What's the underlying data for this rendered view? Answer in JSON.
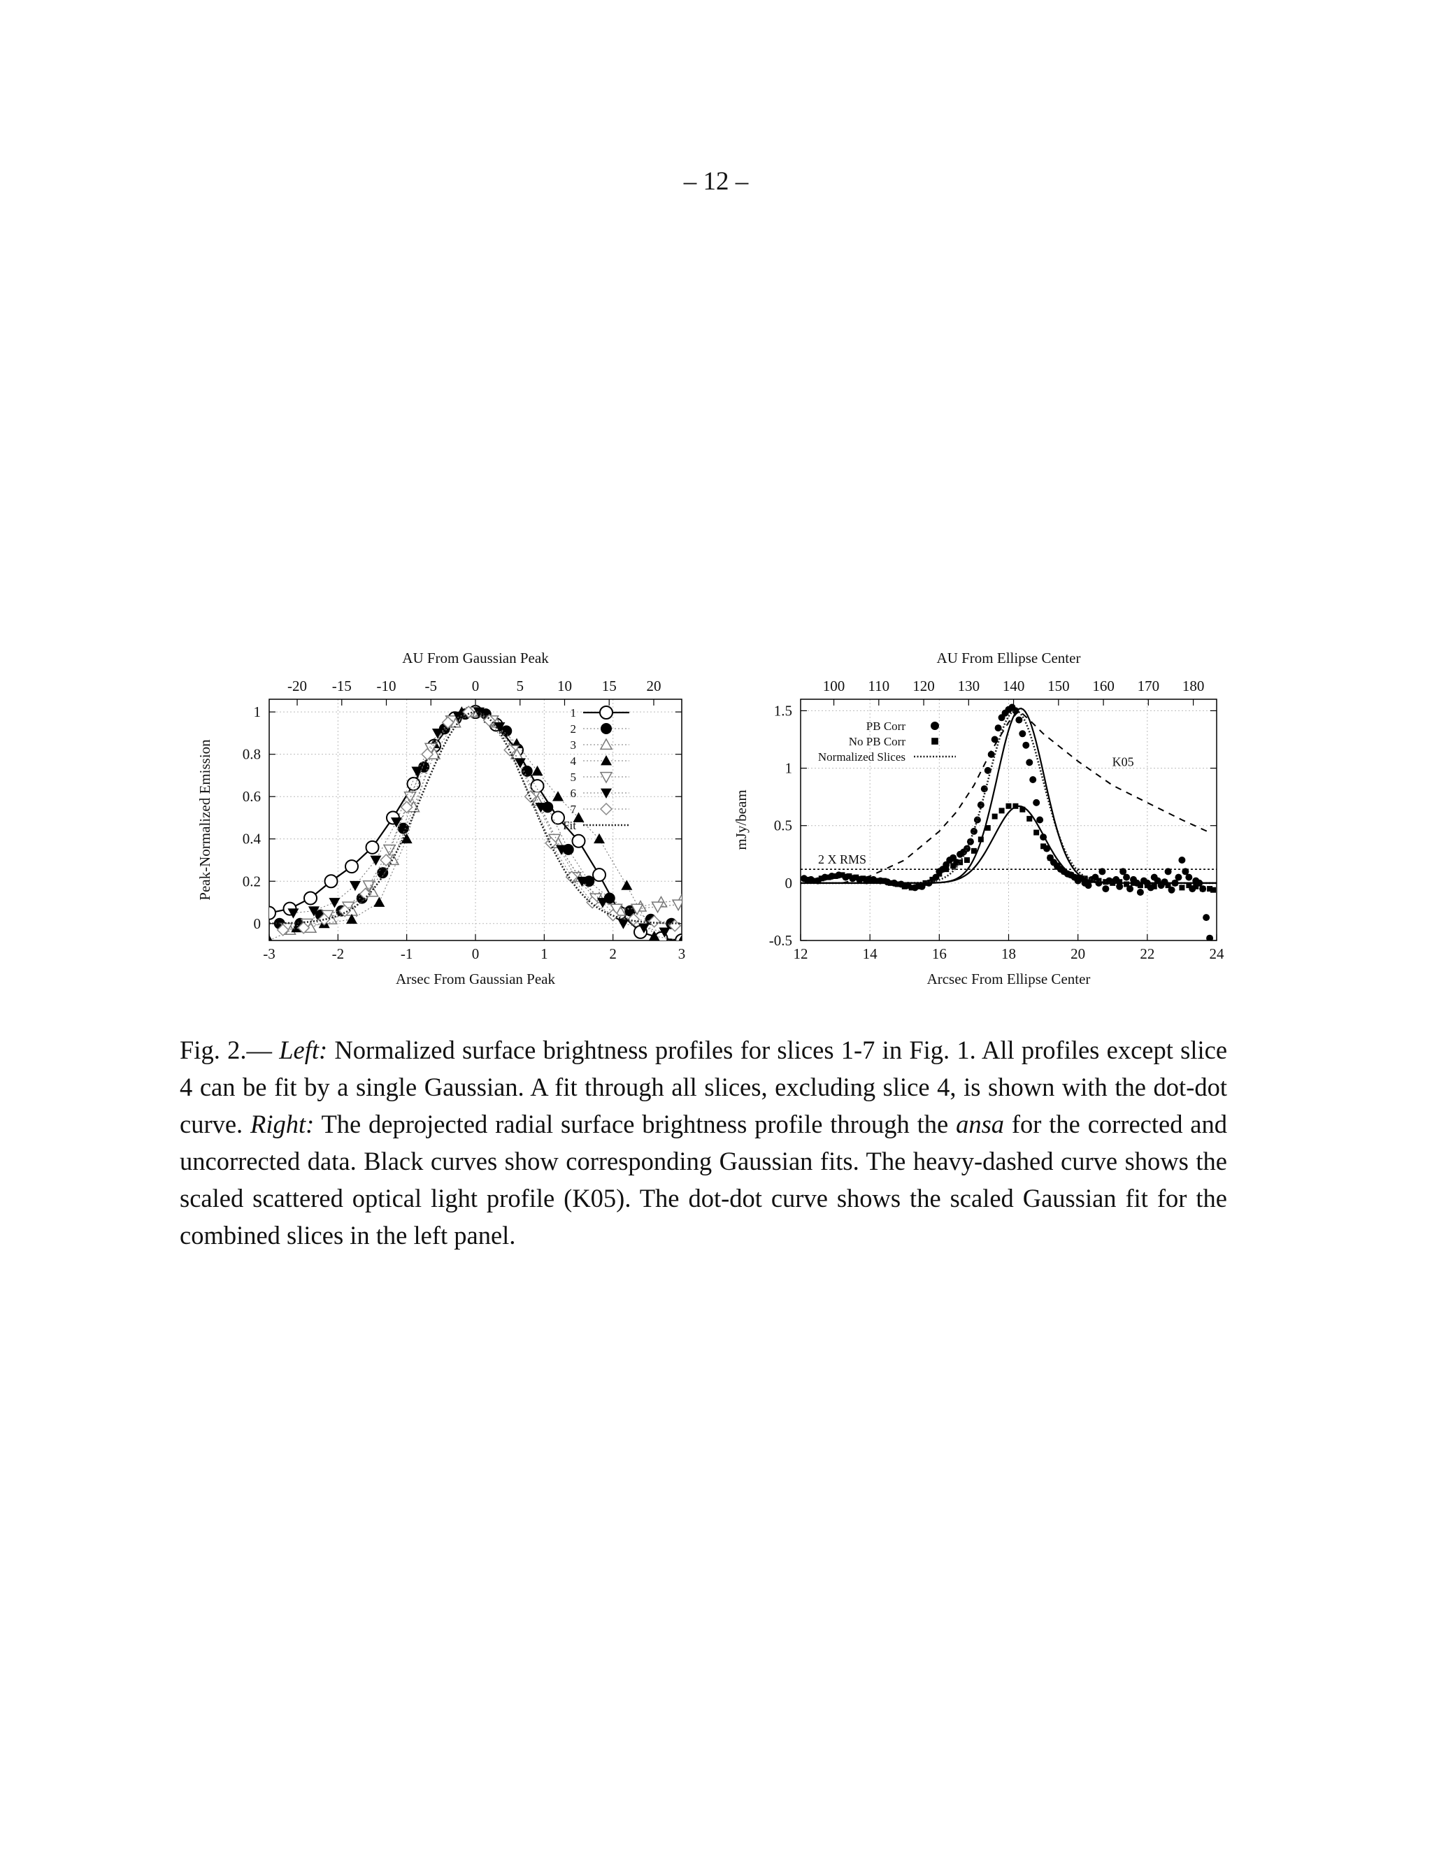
{
  "page": {
    "number": "– 12 –"
  },
  "caption": {
    "fig_label": "Fig. 2.—",
    "left_label": "Left:",
    "text_1": "Normalized surface brightness profiles for slices 1-7 in Fig. 1. All profiles except slice 4 can be fit by a single Gaussian. A fit through all slices, excluding slice 4, is shown with the dot-dot curve.",
    "right_label": "Right:",
    "text_2": "The deprojected radial surface brightness profile through the",
    "ansa": "ansa",
    "text_3": "for the corrected and uncorrected data. Black curves show corresponding Gaussian fits. The heavy-dashed curve shows the scaled scattered optical light profile (K05). The dot-dot curve shows the scaled Gaussian fit for the combined slices in the left panel."
  },
  "chart_data": [
    {
      "type": "scatter",
      "xlabel": "Arsec From Gaussian Peak",
      "ylabel": "Peak-Normalized Emission",
      "x2label": "AU From Gaussian Peak",
      "xlim": [
        -3,
        3
      ],
      "ylim": [
        -0.08,
        1.06
      ],
      "x2lim": [
        -23.14,
        23.14
      ],
      "xticks": [
        "-3",
        "-2",
        "-1",
        "0",
        "1",
        "2",
        "3"
      ],
      "yticks": [
        "0",
        "0.2",
        "0.4",
        "0.6",
        "0.8",
        "1"
      ],
      "x2ticks": [
        "-20",
        "-15",
        "-10",
        "-5",
        "0",
        "5",
        "10",
        "15",
        "20"
      ],
      "grid": true,
      "legend_position": "top-right",
      "series": [
        {
          "name": "1",
          "marker": "open-circle",
          "line": "solid",
          "x": [
            -3,
            -2.7,
            -2.4,
            -2.1,
            -1.8,
            -1.5,
            -1.2,
            -0.9,
            -0.6,
            -0.3,
            0,
            0.3,
            0.6,
            0.9,
            1.2,
            1.5,
            1.8,
            2.1,
            2.4,
            2.7,
            3
          ],
          "y": [
            0.05,
            0.07,
            0.12,
            0.2,
            0.27,
            0.36,
            0.5,
            0.66,
            0.84,
            0.97,
            1.0,
            0.94,
            0.82,
            0.65,
            0.5,
            0.39,
            0.23,
            0.05,
            -0.04,
            -0.07,
            -0.08
          ]
        },
        {
          "name": "2",
          "marker": "filled-circle",
          "line": "dotted",
          "x": [
            -2.85,
            -2.55,
            -2.25,
            -1.95,
            -1.65,
            -1.35,
            -1.05,
            -0.75,
            -0.45,
            -0.15,
            0.15,
            0.45,
            0.75,
            1.05,
            1.35,
            1.65,
            1.95,
            2.25,
            2.55,
            2.85
          ],
          "y": [
            0.0,
            0.0,
            0.04,
            0.06,
            0.12,
            0.24,
            0.45,
            0.74,
            0.92,
            0.99,
            0.99,
            0.91,
            0.72,
            0.55,
            0.35,
            0.2,
            0.12,
            0.06,
            0.02,
            0.0
          ]
        },
        {
          "name": "3",
          "marker": "open-triangle-up",
          "line": "dotted",
          "x": [
            -2.7,
            -2.4,
            -2.1,
            -1.8,
            -1.5,
            -1.2,
            -0.9,
            -0.6,
            -0.3,
            0,
            0.3,
            0.6,
            0.9,
            1.2,
            1.5,
            1.8,
            2.1,
            2.4,
            2.7,
            3
          ],
          "y": [
            -0.03,
            -0.02,
            0.02,
            0.06,
            0.15,
            0.3,
            0.55,
            0.8,
            0.95,
            1.0,
            0.95,
            0.8,
            0.58,
            0.38,
            0.22,
            0.12,
            0.06,
            0.08,
            0.1,
            0.11
          ]
        },
        {
          "name": "4",
          "marker": "filled-triangle-up",
          "line": "dotted",
          "x": [
            -3,
            -2.6,
            -2.2,
            -1.8,
            -1.4,
            -1.0,
            -0.6,
            -0.2,
            0.2,
            0.6,
            0.9,
            1.2,
            1.5,
            1.8,
            2.2,
            2.6,
            3
          ],
          "y": [
            -0.08,
            -0.02,
            0.0,
            0.02,
            0.1,
            0.4,
            0.85,
            1.0,
            0.97,
            0.85,
            0.72,
            0.6,
            0.5,
            0.4,
            0.18,
            -0.06,
            -0.08
          ]
        },
        {
          "name": "5",
          "marker": "open-triangle-down",
          "line": "dotted",
          "x": [
            -2.75,
            -2.45,
            -2.15,
            -1.85,
            -1.55,
            -1.25,
            -0.95,
            -0.65,
            -0.35,
            -0.05,
            0.25,
            0.55,
            0.85,
            1.15,
            1.45,
            1.75,
            2.05,
            2.35,
            2.65,
            2.95
          ],
          "y": [
            -0.02,
            0.0,
            0.04,
            0.08,
            0.18,
            0.35,
            0.6,
            0.83,
            0.96,
            1.0,
            0.96,
            0.82,
            0.6,
            0.4,
            0.22,
            0.12,
            0.07,
            0.07,
            0.08,
            0.09
          ]
        },
        {
          "name": "6",
          "marker": "filled-triangle-down",
          "line": "dotted",
          "x": [
            -2.65,
            -2.35,
            -2.05,
            -1.75,
            -1.45,
            -1.15,
            -0.85,
            -0.55,
            -0.25,
            0.05,
            0.35,
            0.65,
            0.95,
            1.25,
            1.55,
            1.85,
            2.15,
            2.45,
            2.75
          ],
          "y": [
            0.05,
            0.06,
            0.1,
            0.18,
            0.3,
            0.48,
            0.72,
            0.9,
            0.98,
            1.0,
            0.93,
            0.76,
            0.55,
            0.35,
            0.2,
            0.1,
            0.0,
            -0.02,
            -0.04
          ]
        },
        {
          "name": "7",
          "marker": "open-diamond",
          "line": "dotted",
          "x": [
            -2.8,
            -2.5,
            -2.2,
            -1.9,
            -1.6,
            -1.3,
            -1.0,
            -0.7,
            -0.4,
            -0.1,
            0.2,
            0.5,
            0.8,
            1.1,
            1.4,
            1.7,
            2.0,
            2.3,
            2.6,
            2.9
          ],
          "y": [
            -0.03,
            -0.02,
            0.02,
            0.06,
            0.14,
            0.3,
            0.55,
            0.8,
            0.95,
            1.0,
            0.96,
            0.82,
            0.6,
            0.38,
            0.22,
            0.1,
            0.04,
            0.02,
            0.01,
            -0.01
          ]
        },
        {
          "name": "Fit",
          "marker": "none",
          "line": "dotted-heavy",
          "gaussian": {
            "amplitude": 1.0,
            "center": 0.0,
            "sigma": 0.78
          }
        }
      ]
    },
    {
      "type": "scatter",
      "xlabel": "Arcsec From Ellipse Center",
      "ylabel": "mJy/beam",
      "x2label": "AU From Ellipse Center",
      "xlim": [
        12,
        24
      ],
      "ylim": [
        -0.5,
        1.6
      ],
      "x2lim": [
        92.6,
        185.2
      ],
      "xticks": [
        "12",
        "14",
        "16",
        "18",
        "20",
        "22",
        "24"
      ],
      "yticks": [
        "-0.5",
        "0",
        "0.5",
        "1",
        "1.5"
      ],
      "x2ticks": [
        "100",
        "110",
        "120",
        "130",
        "140",
        "150",
        "160",
        "170",
        "180"
      ],
      "grid": true,
      "legend_position": "top-left",
      "annotations": [
        "2 X RMS",
        "K05"
      ],
      "rms_level": 0.12,
      "series": [
        {
          "name": "PB Corr",
          "marker": "filled-circle",
          "x": [
            12.1,
            12.3,
            12.5,
            12.7,
            12.9,
            13.1,
            13.3,
            13.5,
            13.7,
            13.9,
            14.1,
            14.3,
            14.5,
            14.7,
            14.9,
            15.1,
            15.3,
            15.5,
            15.7,
            15.9,
            16.0,
            16.1,
            16.2,
            16.3,
            16.4,
            16.5,
            16.6,
            16.7,
            16.8,
            16.9,
            17.0,
            17.1,
            17.2,
            17.3,
            17.4,
            17.5,
            17.6,
            17.7,
            17.8,
            17.9,
            18.0,
            18.1,
            18.2,
            18.3,
            18.4,
            18.5,
            18.6,
            18.7,
            18.8,
            18.9,
            19.0,
            19.1,
            19.2,
            19.3,
            19.4,
            19.5,
            19.6,
            19.7,
            19.8,
            19.9,
            20.0,
            20.1,
            20.2,
            20.3,
            20.4,
            20.5,
            20.6,
            20.7,
            20.8,
            20.9,
            21.0,
            21.1,
            21.2,
            21.3,
            21.4,
            21.5,
            21.6,
            21.7,
            21.8,
            21.9,
            22.0,
            22.1,
            22.2,
            22.3,
            22.4,
            22.5,
            22.6,
            22.7,
            22.8,
            22.9,
            23.0,
            23.1,
            23.2,
            23.3,
            23.4,
            23.5,
            23.6,
            23.7,
            23.8
          ],
          "y": [
            0.04,
            0.03,
            0.02,
            0.05,
            0.06,
            0.07,
            0.05,
            0.04,
            0.03,
            0.02,
            0.03,
            0.02,
            0.01,
            0.0,
            -0.01,
            -0.02,
            -0.04,
            -0.03,
            0.0,
            0.05,
            0.1,
            0.12,
            0.16,
            0.2,
            0.22,
            0.18,
            0.25,
            0.27,
            0.3,
            0.36,
            0.45,
            0.55,
            0.68,
            0.82,
            0.98,
            1.12,
            1.25,
            1.35,
            1.44,
            1.48,
            1.51,
            1.53,
            1.5,
            1.42,
            1.3,
            1.2,
            1.05,
            0.9,
            0.7,
            0.55,
            0.4,
            0.3,
            0.22,
            0.18,
            0.15,
            0.12,
            0.1,
            0.08,
            0.07,
            0.05,
            0.02,
            0.04,
            0.0,
            -0.02,
            0.03,
            0.05,
            0.0,
            0.1,
            -0.05,
            0.02,
            0.01,
            0.03,
            -0.03,
            0.1,
            0.05,
            -0.05,
            0.03,
            0.0,
            -0.08,
            0.02,
            0.0,
            -0.04,
            0.05,
            0.02,
            -0.02,
            0.01,
            0.1,
            -0.06,
            0.0,
            0.05,
            0.2,
            0.1,
            0.05,
            -0.05,
            0.02,
            0.0,
            -0.05,
            -0.3,
            -0.48
          ]
        },
        {
          "name": "No PB Corr",
          "marker": "filled-square",
          "x": [
            12.2,
            12.4,
            12.6,
            12.8,
            13.0,
            13.2,
            13.4,
            13.6,
            13.8,
            14.0,
            14.2,
            14.4,
            14.6,
            14.8,
            15.0,
            15.2,
            15.4,
            15.6,
            15.8,
            16.0,
            16.2,
            16.4,
            16.6,
            16.8,
            17.0,
            17.2,
            17.4,
            17.6,
            17.8,
            18.0,
            18.2,
            18.4,
            18.6,
            18.8,
            19.0,
            19.2,
            19.4,
            19.6,
            19.8,
            20.0,
            20.2,
            20.4,
            20.6,
            20.8,
            21.0,
            21.2,
            21.4,
            21.6,
            21.8,
            22.0,
            22.2,
            22.4,
            22.6,
            22.8,
            23.0,
            23.2,
            23.4,
            23.6,
            23.8,
            23.9
          ],
          "y": [
            0.03,
            0.02,
            0.04,
            0.05,
            0.06,
            0.07,
            0.06,
            0.05,
            0.04,
            0.03,
            0.02,
            0.02,
            0.0,
            -0.01,
            -0.03,
            -0.04,
            -0.03,
            0.0,
            0.03,
            0.08,
            0.12,
            0.15,
            0.18,
            0.2,
            0.28,
            0.38,
            0.48,
            0.58,
            0.63,
            0.67,
            0.67,
            0.64,
            0.56,
            0.44,
            0.32,
            0.22,
            0.14,
            0.1,
            0.07,
            0.05,
            0.04,
            0.03,
            0.02,
            0.01,
            0.0,
            0.01,
            -0.01,
            0.0,
            -0.02,
            -0.02,
            -0.03,
            -0.01,
            -0.02,
            0.0,
            -0.04,
            -0.02,
            -0.03,
            -0.05,
            -0.05,
            -0.06
          ]
        },
        {
          "name": "Normalized Slices",
          "marker": "none",
          "line": "dotted-heavy",
          "gaussian": {
            "amplitude": 1.5,
            "center": 18.2,
            "sigma": 0.78
          }
        },
        {
          "name": "",
          "marker": "none",
          "line": "solid",
          "gaussian": {
            "amplitude": 1.52,
            "center": 18.35,
            "sigma": 0.68
          }
        },
        {
          "name": "",
          "marker": "none",
          "line": "solid",
          "gaussian": {
            "amplitude": 0.67,
            "center": 18.3,
            "sigma": 0.72
          }
        },
        {
          "name": "",
          "marker": "none",
          "line": "dashed-heavy",
          "x": [
            13.2,
            14.0,
            15.0,
            16.0,
            16.5,
            17.0,
            17.5,
            18.0,
            18.3,
            18.6,
            19.0,
            19.5,
            20.0,
            21.0,
            22.0,
            23.0,
            23.8
          ],
          "y": [
            0.0,
            0.06,
            0.2,
            0.45,
            0.62,
            0.85,
            1.15,
            1.4,
            1.5,
            1.42,
            1.3,
            1.18,
            1.06,
            0.85,
            0.7,
            0.55,
            0.44
          ]
        }
      ]
    }
  ]
}
